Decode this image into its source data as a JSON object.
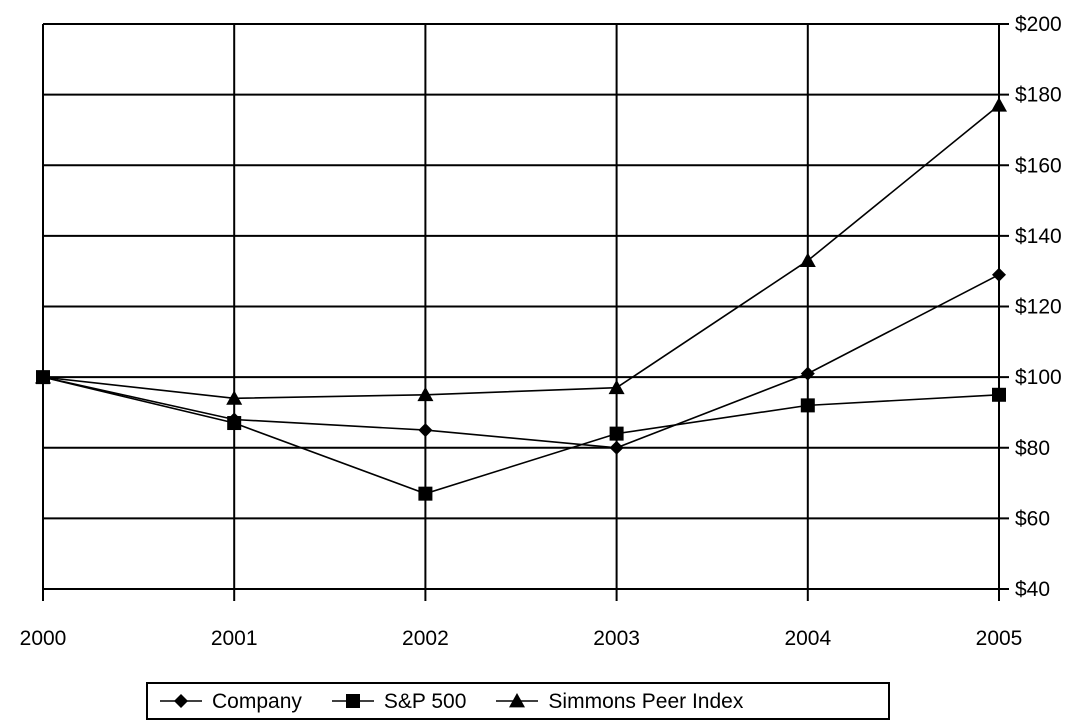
{
  "chart_data": {
    "type": "line",
    "title": "",
    "xlabel": "",
    "ylabel": "",
    "x": [
      "2000",
      "2001",
      "2002",
      "2003",
      "2004",
      "2005"
    ],
    "ylim": [
      40,
      200
    ],
    "y_ticks": [
      "$200",
      "$180",
      "$160",
      "$140",
      "$120",
      "$100",
      "$80",
      "$60",
      "$40"
    ],
    "y_tick_values": [
      200,
      180,
      160,
      140,
      120,
      100,
      80,
      60,
      40
    ],
    "y_axis_position": "right",
    "grid": true,
    "legend_position": "bottom",
    "series": [
      {
        "name": "Company",
        "marker": "diamond",
        "color": "#000000",
        "values": [
          100,
          88,
          85,
          80,
          101,
          129
        ]
      },
      {
        "name": "S&P 500",
        "marker": "square",
        "color": "#000000",
        "values": [
          100,
          87,
          67,
          84,
          92,
          95
        ]
      },
      {
        "name": "Simmons Peer Index",
        "marker": "triangle",
        "color": "#000000",
        "values": [
          100,
          94,
          95,
          97,
          133,
          177
        ]
      }
    ]
  }
}
